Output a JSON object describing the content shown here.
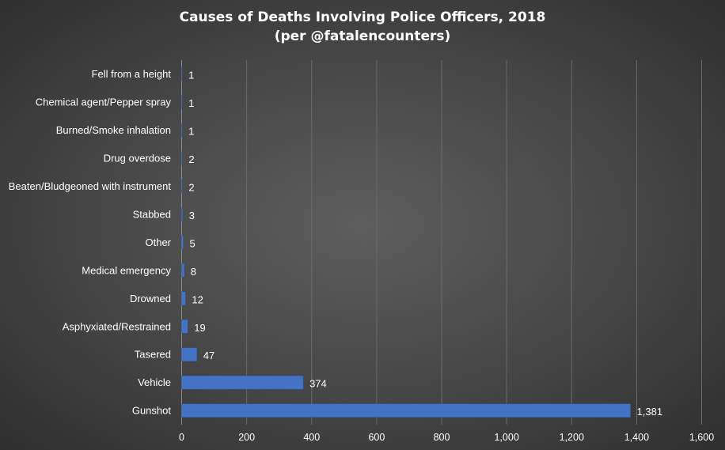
{
  "chart_data": {
    "type": "bar",
    "orientation": "horizontal",
    "title": "Causes of Deaths Involving Police Officers, 2018",
    "subtitle": "(per @fatalencounters)",
    "categories": [
      "Fell from a height",
      "Chemical agent/Pepper spray",
      "Burned/Smoke inhalation",
      "Drug overdose",
      "Beaten/Bludgeoned with instrument",
      "Stabbed",
      "Other",
      "Medical emergency",
      "Drowned",
      "Asphyxiated/Restrained",
      "Tasered",
      "Vehicle",
      "Gunshot"
    ],
    "values": [
      1,
      1,
      1,
      2,
      2,
      3,
      5,
      8,
      12,
      19,
      47,
      374,
      1381
    ],
    "value_labels": [
      "1",
      "1",
      "1",
      "2",
      "2",
      "3",
      "5",
      "8",
      "12",
      "19",
      "47",
      "374",
      "1,381"
    ],
    "xlim": [
      0,
      1600
    ],
    "x_ticks": [
      0,
      200,
      400,
      600,
      800,
      1000,
      1200,
      1400,
      1600
    ],
    "x_tick_labels": [
      "0",
      "200",
      "400",
      "600",
      "800",
      "1,000",
      "1,200",
      "1,400",
      "1,600"
    ],
    "xlabel": "",
    "ylabel": "",
    "grid": true,
    "legend": false,
    "colors": {
      "bar": "#4472c4",
      "bar_edge": "#2f5597",
      "grid": "#6a6a6a",
      "axis": "#8a8a8a",
      "text": "#ffffff"
    }
  }
}
